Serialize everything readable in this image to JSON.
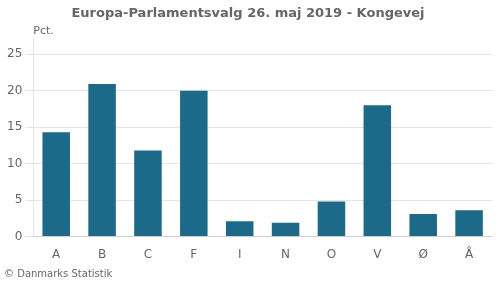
{
  "chart_data": {
    "type": "bar",
    "title": "Europa-Parlamentsvalg 26. maj 2019 - Kongevej",
    "ylabel": "Pct.",
    "annotations": [
      "© Danmarks Statistik"
    ],
    "categories": [
      "A",
      "B",
      "C",
      "F",
      "I",
      "N",
      "O",
      "V",
      "Ø",
      "Å"
    ],
    "values": [
      14.3,
      20.9,
      11.8,
      20.0,
      2.1,
      1.9,
      4.8,
      18.0,
      3.1,
      3.6
    ],
    "color": "#1b6a8a",
    "ylim": [
      0,
      27
    ],
    "yticks": [
      0,
      5,
      10,
      15,
      20,
      25
    ],
    "grid": true
  }
}
